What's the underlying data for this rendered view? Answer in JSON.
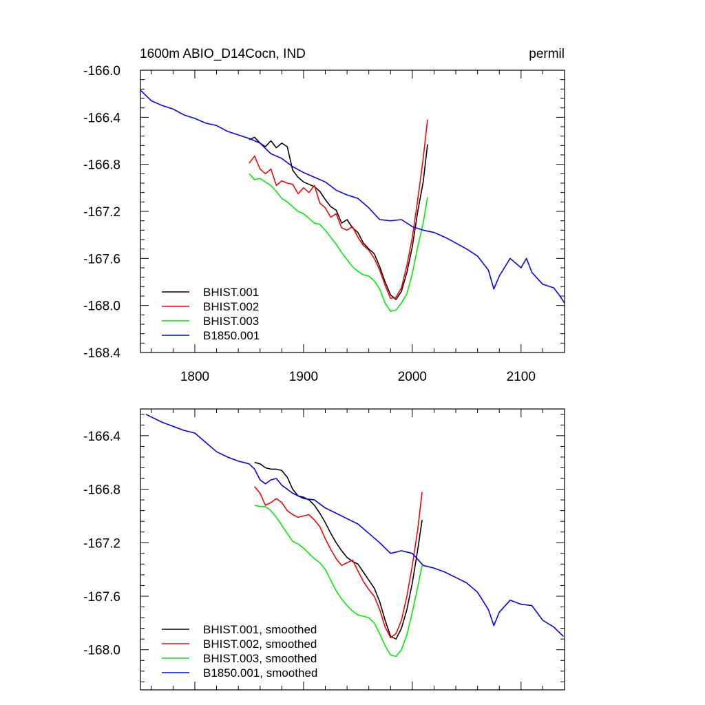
{
  "chart_data": [
    {
      "type": "line",
      "title": "1600m ABIO_D14Cocn, IND",
      "units": "permil",
      "xlabel": "",
      "ylabel": "",
      "xlim": [
        1750,
        2140
      ],
      "ylim": [
        -168.4,
        -166.0
      ],
      "xticks": [
        1800,
        1900,
        2000,
        2100
      ],
      "yticks": [
        -166.0,
        -166.4,
        -166.8,
        -167.2,
        -167.6,
        -168.0,
        -168.4
      ],
      "xtick_labels": [
        "1800",
        "1900",
        "2000",
        "2100"
      ],
      "ytick_labels": [
        "-166.0",
        "-166.4",
        "-166.8",
        "-167.2",
        "-167.6",
        "-168.0",
        "-168.4"
      ],
      "legend_position": "bottom-left",
      "series": [
        {
          "name": "BHIST.001",
          "color": "#000000",
          "x": [
            1850,
            1855,
            1860,
            1865,
            1870,
            1875,
            1880,
            1885,
            1890,
            1895,
            1900,
            1905,
            1910,
            1915,
            1920,
            1925,
            1930,
            1935,
            1940,
            1945,
            1950,
            1955,
            1960,
            1965,
            1970,
            1975,
            1980,
            1985,
            1990,
            1995,
            2000,
            2005,
            2010,
            2014
          ],
          "y": [
            -166.59,
            -166.57,
            -166.62,
            -166.65,
            -166.6,
            -166.66,
            -166.62,
            -166.65,
            -166.85,
            -166.91,
            -166.95,
            -166.97,
            -166.99,
            -167.03,
            -167.1,
            -167.16,
            -167.19,
            -167.3,
            -167.27,
            -167.34,
            -167.38,
            -167.47,
            -167.52,
            -167.56,
            -167.67,
            -167.8,
            -167.91,
            -167.95,
            -167.88,
            -167.72,
            -167.5,
            -167.2,
            -166.95,
            -166.63
          ]
        },
        {
          "name": "BHIST.002",
          "color": "#ff0000",
          "x": [
            1850,
            1855,
            1860,
            1865,
            1870,
            1875,
            1880,
            1885,
            1890,
            1895,
            1900,
            1905,
            1910,
            1915,
            1920,
            1925,
            1930,
            1935,
            1940,
            1945,
            1950,
            1955,
            1960,
            1965,
            1970,
            1975,
            1980,
            1985,
            1990,
            1995,
            2000,
            2005,
            2010,
            2014
          ],
          "y": [
            -166.79,
            -166.73,
            -166.84,
            -166.88,
            -166.84,
            -166.98,
            -166.94,
            -166.96,
            -166.97,
            -167.05,
            -167.0,
            -167.04,
            -166.98,
            -167.13,
            -167.17,
            -167.25,
            -167.22,
            -167.34,
            -167.36,
            -167.33,
            -167.42,
            -167.49,
            -167.53,
            -167.6,
            -167.7,
            -167.83,
            -167.94,
            -167.93,
            -167.85,
            -167.66,
            -167.42,
            -167.1,
            -166.75,
            -166.42
          ]
        },
        {
          "name": "BHIST.003",
          "color": "#00ee00",
          "x": [
            1850,
            1855,
            1860,
            1865,
            1870,
            1875,
            1880,
            1885,
            1890,
            1895,
            1900,
            1905,
            1910,
            1915,
            1920,
            1925,
            1930,
            1935,
            1940,
            1945,
            1950,
            1955,
            1960,
            1965,
            1970,
            1975,
            1980,
            1985,
            1990,
            1995,
            2000,
            2005,
            2010,
            2014
          ],
          "y": [
            -166.88,
            -166.93,
            -166.92,
            -166.95,
            -166.98,
            -167.03,
            -167.09,
            -167.12,
            -167.16,
            -167.2,
            -167.22,
            -167.26,
            -167.3,
            -167.31,
            -167.36,
            -167.42,
            -167.48,
            -167.55,
            -167.61,
            -167.67,
            -167.71,
            -167.74,
            -167.75,
            -167.79,
            -167.86,
            -167.98,
            -168.05,
            -168.04,
            -167.98,
            -167.9,
            -167.73,
            -167.5,
            -167.3,
            -167.08
          ]
        },
        {
          "name": "B1850.001",
          "color": "#0000ff",
          "x": [
            1750,
            1760,
            1770,
            1780,
            1790,
            1800,
            1810,
            1820,
            1830,
            1840,
            1850,
            1860,
            1870,
            1880,
            1890,
            1900,
            1910,
            1920,
            1930,
            1940,
            1950,
            1960,
            1970,
            1980,
            1990,
            2000,
            2010,
            2020,
            2030,
            2040,
            2050,
            2060,
            2070,
            2075,
            2080,
            2090,
            2100,
            2105,
            2110,
            2120,
            2130,
            2135,
            2140
          ],
          "y": [
            -166.17,
            -166.26,
            -166.3,
            -166.33,
            -166.38,
            -166.41,
            -166.45,
            -166.47,
            -166.52,
            -166.55,
            -166.58,
            -166.62,
            -166.71,
            -166.75,
            -166.82,
            -166.87,
            -166.91,
            -166.95,
            -167.02,
            -167.06,
            -167.09,
            -167.17,
            -167.27,
            -167.28,
            -167.27,
            -167.33,
            -167.36,
            -167.38,
            -167.42,
            -167.47,
            -167.52,
            -167.58,
            -167.7,
            -167.86,
            -167.75,
            -167.6,
            -167.68,
            -167.6,
            -167.72,
            -167.82,
            -167.85,
            -167.91,
            -167.98
          ]
        }
      ]
    },
    {
      "type": "line",
      "title": "",
      "xlabel": "",
      "ylabel": "",
      "xlim": [
        1750,
        2140
      ],
      "ylim": [
        -168.3,
        -166.2
      ],
      "xticks": [
        1800,
        1900,
        2000,
        2100
      ],
      "yticks": [
        -166.4,
        -166.8,
        -167.2,
        -167.6,
        -168.0
      ],
      "ytick_labels": [
        "-166.4",
        "-166.8",
        "-167.2",
        "-167.6",
        "-168.0"
      ],
      "legend_position": "bottom-left",
      "series": [
        {
          "name": "BHIST.001, smoothed",
          "color": "#000000",
          "x": [
            1855,
            1860,
            1865,
            1870,
            1875,
            1880,
            1885,
            1890,
            1895,
            1900,
            1905,
            1910,
            1915,
            1920,
            1925,
            1930,
            1935,
            1940,
            1945,
            1950,
            1955,
            1960,
            1965,
            1970,
            1975,
            1980,
            1985,
            1990,
            1995,
            2000,
            2005,
            2009
          ],
          "y": [
            -166.6,
            -166.61,
            -166.64,
            -166.65,
            -166.65,
            -166.66,
            -166.71,
            -166.8,
            -166.85,
            -166.86,
            -166.88,
            -166.92,
            -166.98,
            -167.05,
            -167.13,
            -167.2,
            -167.26,
            -167.31,
            -167.34,
            -167.36,
            -167.42,
            -167.48,
            -167.54,
            -167.64,
            -167.78,
            -167.9,
            -167.92,
            -167.84,
            -167.7,
            -167.5,
            -167.25,
            -167.03
          ]
        },
        {
          "name": "BHIST.002, smoothed",
          "color": "#ff0000",
          "x": [
            1855,
            1860,
            1865,
            1870,
            1875,
            1880,
            1885,
            1890,
            1895,
            1900,
            1905,
            1910,
            1915,
            1920,
            1925,
            1930,
            1935,
            1940,
            1945,
            1950,
            1955,
            1960,
            1965,
            1970,
            1975,
            1980,
            1985,
            1990,
            1995,
            2000,
            2005,
            2009
          ],
          "y": [
            -166.78,
            -166.83,
            -166.92,
            -166.9,
            -166.87,
            -166.9,
            -166.96,
            -166.99,
            -167.01,
            -167.0,
            -166.99,
            -167.03,
            -167.08,
            -167.17,
            -167.25,
            -167.32,
            -167.37,
            -167.35,
            -167.33,
            -167.41,
            -167.49,
            -167.55,
            -167.6,
            -167.7,
            -167.83,
            -167.91,
            -167.88,
            -167.78,
            -167.6,
            -167.37,
            -167.1,
            -166.82
          ]
        },
        {
          "name": "BHIST.003, smoothed",
          "color": "#00ee00",
          "x": [
            1855,
            1860,
            1865,
            1870,
            1875,
            1880,
            1885,
            1890,
            1895,
            1900,
            1905,
            1910,
            1915,
            1920,
            1925,
            1930,
            1935,
            1940,
            1945,
            1950,
            1955,
            1960,
            1965,
            1970,
            1975,
            1980,
            1985,
            1990,
            1995,
            2000,
            2005,
            2009
          ],
          "y": [
            -166.92,
            -166.93,
            -166.93,
            -166.96,
            -167.01,
            -167.07,
            -167.13,
            -167.19,
            -167.21,
            -167.24,
            -167.28,
            -167.32,
            -167.35,
            -167.4,
            -167.48,
            -167.56,
            -167.62,
            -167.67,
            -167.71,
            -167.74,
            -167.75,
            -167.76,
            -167.8,
            -167.88,
            -167.97,
            -168.04,
            -168.05,
            -168.0,
            -167.89,
            -167.72,
            -167.53,
            -167.37
          ]
        },
        {
          "name": "B1850.001, smoothed",
          "color": "#0000ff",
          "x": [
            1755,
            1760,
            1770,
            1780,
            1790,
            1800,
            1810,
            1820,
            1830,
            1840,
            1850,
            1855,
            1860,
            1865,
            1870,
            1875,
            1880,
            1890,
            1900,
            1910,
            1920,
            1930,
            1940,
            1950,
            1960,
            1970,
            1980,
            1990,
            2000,
            2010,
            2020,
            2030,
            2040,
            2050,
            2060,
            2070,
            2075,
            2080,
            2090,
            2100,
            2110,
            2120,
            2130,
            2139
          ],
          "y": [
            -166.24,
            -166.26,
            -166.3,
            -166.33,
            -166.36,
            -166.38,
            -166.45,
            -166.52,
            -166.56,
            -166.59,
            -166.61,
            -166.65,
            -166.73,
            -166.76,
            -166.73,
            -166.72,
            -166.77,
            -166.83,
            -166.87,
            -166.88,
            -166.94,
            -166.98,
            -167.02,
            -167.06,
            -167.13,
            -167.2,
            -167.28,
            -167.26,
            -167.28,
            -167.37,
            -167.39,
            -167.42,
            -167.46,
            -167.5,
            -167.57,
            -167.7,
            -167.82,
            -167.72,
            -167.63,
            -167.66,
            -167.67,
            -167.78,
            -167.83,
            -167.9
          ]
        }
      ]
    }
  ]
}
